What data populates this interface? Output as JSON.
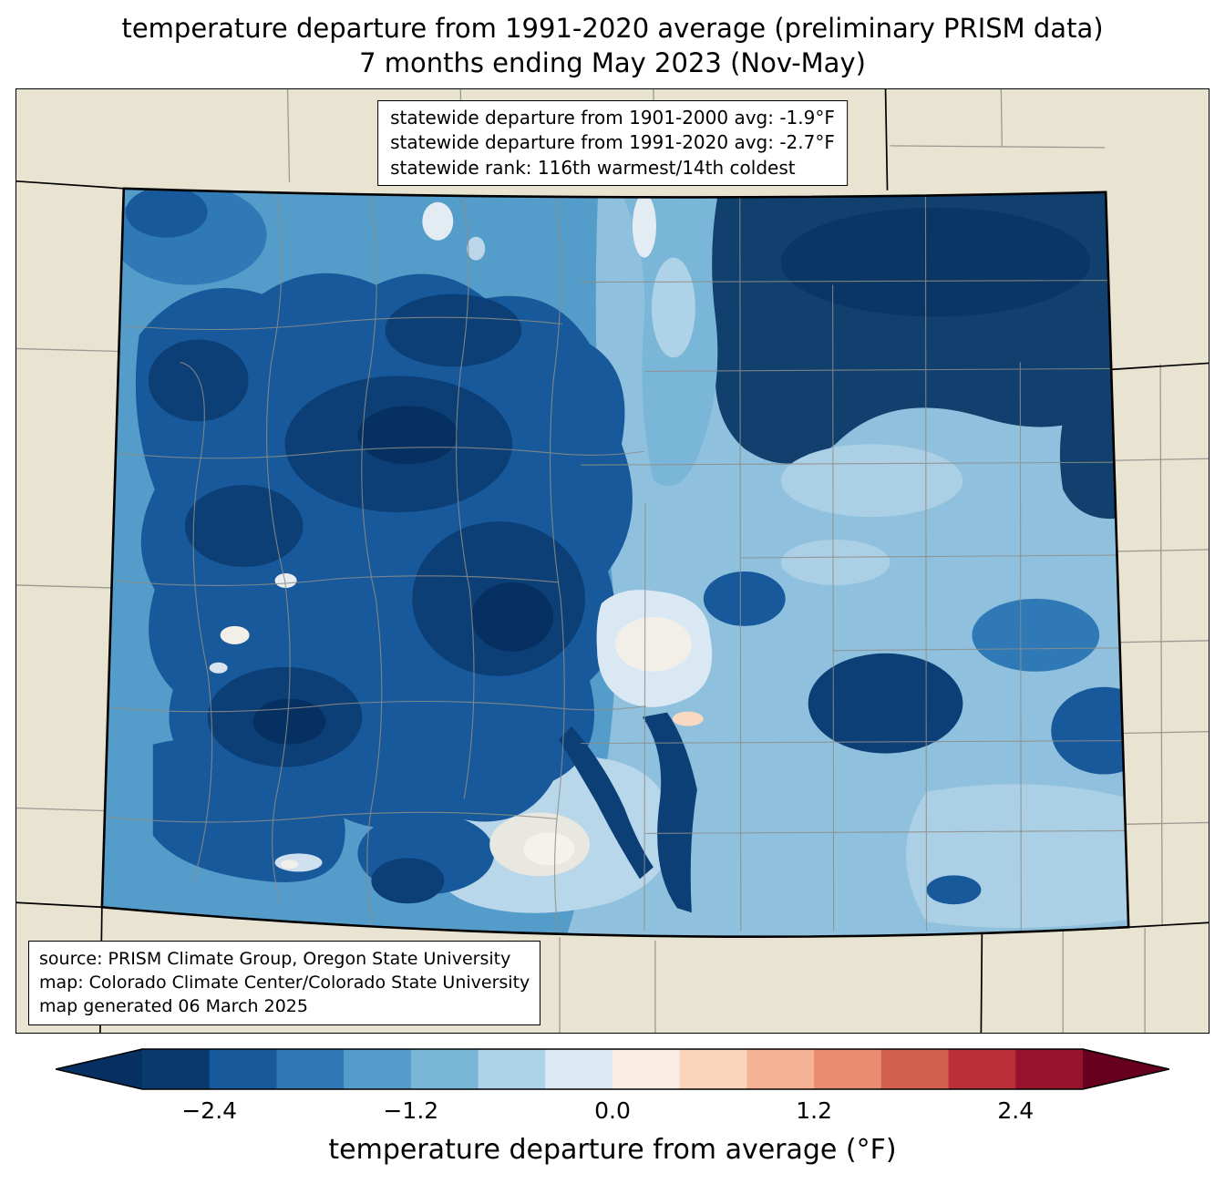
{
  "title": {
    "line1": "temperature departure from 1991-2020 average (preliminary PRISM data)",
    "line2": "7 months ending May 2023 (Nov-May)"
  },
  "stats_box": {
    "lines": [
      "statewide departure from 1901-2000 avg: -1.9°F",
      "statewide departure from 1991-2020 avg: -2.7°F",
      "statewide rank: 116th warmest/14th coldest"
    ]
  },
  "source_box": {
    "lines": [
      "source: PRISM Climate Group, Oregon State University",
      "map: Colorado Climate Center/Colorado State University",
      "map generated 06 March 2025"
    ]
  },
  "colorbar": {
    "label": "temperature departure from average (°F)",
    "range": [
      -2.8,
      2.8
    ],
    "ticks": [
      {
        "value": -2.4,
        "label": "−2.4"
      },
      {
        "value": -1.2,
        "label": "−1.2"
      },
      {
        "value": 0.0,
        "label": "0.0"
      },
      {
        "value": 1.2,
        "label": "1.2"
      },
      {
        "value": 2.4,
        "label": "2.4"
      }
    ],
    "segment_colors": [
      "#083a6d",
      "#17599b",
      "#2f79b6",
      "#549cc9",
      "#7ab6d8",
      "#aed2e7",
      "#dcebf3",
      "#f9ece2",
      "#fad5bc",
      "#f5b294",
      "#e88b6f",
      "#d35f4f",
      "#bb3038",
      "#95132b"
    ],
    "under_color": "#053061",
    "over_color": "#67001f"
  },
  "map": {
    "region": "Colorado",
    "background_color": "#e8e4d1",
    "state_border_color": "#000000",
    "county_line_color": "#8e8e88"
  },
  "chart_data": {
    "type": "heatmap",
    "title": "temperature departure from 1991-2020 average (preliminary PRISM data), 7 months ending May 2023 (Nov-May)",
    "region": "Colorado",
    "units": "°F",
    "scale_range": [
      -2.8,
      2.8
    ],
    "scale_ticks": [
      -2.4,
      -1.2,
      0.0,
      1.2,
      2.4
    ],
    "statewide_departure_from_1901_2000_avg": -1.9,
    "statewide_departure_from_1991_2020_avg": -2.7,
    "statewide_rank": "116th warmest/14th coldest",
    "legend_label": "temperature departure from average (°F)"
  }
}
